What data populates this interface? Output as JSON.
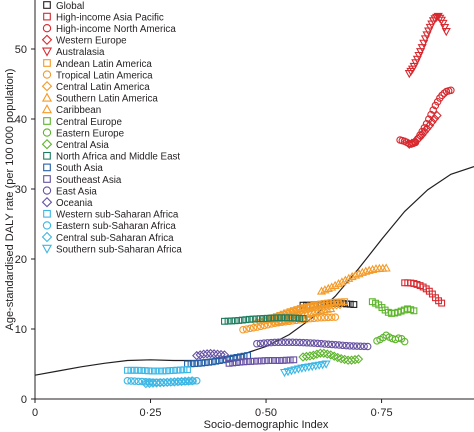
{
  "chart_data": {
    "type": "scatter",
    "xlabel": "Socio-demographic Index",
    "ylabel": "Age-standardised DALY rate (per 100 000 population)",
    "xlim": [
      0,
      0.95
    ],
    "ylim": [
      0,
      57
    ],
    "x_ticks": [
      0,
      0.25,
      0.5,
      0.75
    ],
    "x_tick_labels": [
      "0",
      "0·25",
      "0·50",
      "0·75"
    ],
    "y_ticks": [
      0,
      10,
      20,
      30,
      40,
      50
    ],
    "y_tick_labels": [
      "0",
      "10",
      "20",
      "30",
      "40",
      "50"
    ],
    "grid": false,
    "legend_position": "top-left",
    "expected_curve": {
      "x": [
        0,
        0.05,
        0.1,
        0.15,
        0.2,
        0.25,
        0.3,
        0.35,
        0.4,
        0.45,
        0.5,
        0.55,
        0.6,
        0.65,
        0.7,
        0.75,
        0.8,
        0.85,
        0.9,
        0.95
      ],
      "y": [
        3.4,
        4.0,
        4.6,
        5.1,
        5.5,
        5.6,
        5.5,
        5.5,
        5.8,
        6.4,
        7.5,
        9.2,
        11.6,
        14.7,
        18.6,
        22.8,
        26.8,
        29.9,
        32.1,
        33.2
      ]
    },
    "series": [
      {
        "name": "Global",
        "marker": "square",
        "color": "#231f20",
        "x_start": 0.58,
        "x_end": 0.69,
        "y": [
          13.4,
          13.4,
          13.5,
          13.6,
          13.7,
          13.6,
          13.5
        ]
      },
      {
        "name": "High-income Asia Pacific",
        "marker": "square",
        "color": "#d7292f",
        "x_start": 0.8,
        "x_end": 0.88,
        "y": [
          16.6,
          16.6,
          16.5,
          16.3,
          16.0,
          15.6,
          15.0,
          14.2,
          13.7
        ]
      },
      {
        "name": "High-income North America",
        "marker": "circle",
        "color": "#d7292f",
        "x_start": 0.79,
        "x_end": 0.9,
        "y": [
          37.0,
          36.8,
          36.4,
          36.6,
          37.8,
          39.0,
          40.5,
          42.0,
          43.2,
          43.9,
          44.1
        ]
      },
      {
        "name": "Western Europe",
        "marker": "diamond",
        "color": "#d7292f",
        "x_start": 0.81,
        "x_end": 0.87,
        "y": [
          36.4,
          36.6,
          37.0,
          37.6,
          38.3,
          39.0,
          39.8,
          40.5
        ]
      },
      {
        "name": "Australasia",
        "marker": "triangle-down",
        "color": "#d7292f",
        "x_start": 0.81,
        "x_end": 0.89,
        "y": [
          46.5,
          47.3,
          48.6,
          50.0,
          51.6,
          53.0,
          54.2,
          54.7,
          54.0,
          52.5
        ]
      },
      {
        "name": "Andean Latin America",
        "marker": "square",
        "color": "#f49a27",
        "x_start": 0.5,
        "x_end": 0.67,
        "y": [
          11.3,
          11.8,
          12.4,
          12.9,
          13.3,
          13.6,
          13.8,
          13.9
        ]
      },
      {
        "name": "Tropical Latin America",
        "marker": "circle",
        "color": "#f49a27",
        "x_start": 0.45,
        "x_end": 0.65,
        "y": [
          9.9,
          10.3,
          10.8,
          11.1,
          11.4,
          11.6,
          11.7
        ]
      },
      {
        "name": "Central Latin America",
        "marker": "diamond",
        "color": "#f49a27",
        "x_start": 0.48,
        "x_end": 0.66,
        "y": [
          10.9,
          11.4,
          12.0,
          12.6,
          13.0,
          13.3,
          13.5
        ]
      },
      {
        "name": "Southern Latin America",
        "marker": "triangle-up",
        "color": "#f49a27",
        "x_start": 0.62,
        "x_end": 0.76,
        "y": [
          15.4,
          16.0,
          16.8,
          17.6,
          18.2,
          18.6,
          18.7
        ]
      },
      {
        "name": "Caribbean",
        "marker": "triangle-up",
        "color": "#f49a27",
        "x_start": 0.52,
        "x_end": 0.64,
        "y": [
          11.0,
          11.3,
          11.7,
          12.2,
          12.6,
          12.9
        ]
      },
      {
        "name": "Central Europe",
        "marker": "square",
        "color": "#5db52b",
        "x_start": 0.73,
        "x_end": 0.82,
        "y": [
          13.9,
          13.5,
          12.8,
          12.2,
          12.3,
          12.6,
          12.9,
          12.6
        ]
      },
      {
        "name": "Eastern Europe",
        "marker": "circle",
        "color": "#5db52b",
        "x_start": 0.74,
        "x_end": 0.8,
        "y": [
          8.3,
          8.6,
          9.1,
          8.7,
          8.5,
          8.8,
          8.2
        ]
      },
      {
        "name": "Central Asia",
        "marker": "diamond",
        "color": "#5db52b",
        "x_start": 0.58,
        "x_end": 0.7,
        "y": [
          6.0,
          6.2,
          6.6,
          6.3,
          5.8,
          5.5,
          5.7
        ]
      },
      {
        "name": "North Africa and Middle East",
        "marker": "square",
        "color": "#1d7c5f",
        "x_start": 0.41,
        "x_end": 0.58,
        "y": [
          11.1,
          11.2,
          11.4,
          11.5,
          11.6,
          11.6,
          11.5
        ]
      },
      {
        "name": "South Asia",
        "marker": "square",
        "color": "#235fa8",
        "x_start": 0.33,
        "x_end": 0.46,
        "y": [
          5.0,
          5.1,
          5.3,
          5.6,
          5.9,
          6.2
        ]
      },
      {
        "name": "Southeast Asia",
        "marker": "square",
        "color": "#6651a3",
        "x_start": 0.42,
        "x_end": 0.56,
        "y": [
          5.1,
          5.3,
          5.4,
          5.5,
          5.5,
          5.6
        ]
      },
      {
        "name": "East Asia",
        "marker": "circle",
        "color": "#6651a3",
        "x_start": 0.48,
        "x_end": 0.72,
        "y": [
          7.9,
          8.1,
          8.1,
          8.0,
          7.8,
          7.6,
          7.5
        ]
      },
      {
        "name": "Oceania",
        "marker": "diamond",
        "color": "#6651a3",
        "x_start": 0.35,
        "x_end": 0.41,
        "y": [
          6.2,
          6.4,
          6.5,
          6.4,
          6.3
        ]
      },
      {
        "name": "Western sub-Saharan Africa",
        "marker": "square",
        "color": "#3cb7e5",
        "x_start": 0.2,
        "x_end": 0.33,
        "y": [
          4.1,
          4.1,
          4.0,
          4.0,
          4.1,
          4.2
        ]
      },
      {
        "name": "Eastern sub-Saharan Africa",
        "marker": "circle",
        "color": "#3cb7e5",
        "x_start": 0.2,
        "x_end": 0.35,
        "y": [
          2.6,
          2.5,
          2.4,
          2.4,
          2.5,
          2.6
        ]
      },
      {
        "name": "Central sub-Saharan Africa",
        "marker": "diamond",
        "color": "#3cb7e5",
        "x_start": 0.24,
        "x_end": 0.34,
        "y": [
          2.2,
          2.3,
          2.4,
          2.5,
          2.6
        ]
      },
      {
        "name": "Southern sub-Saharan Africa",
        "marker": "triangle-down",
        "color": "#3cb7e5",
        "x_start": 0.54,
        "x_end": 0.63,
        "y": [
          3.8,
          4.1,
          4.4,
          4.6,
          4.8,
          5.0
        ]
      }
    ]
  }
}
